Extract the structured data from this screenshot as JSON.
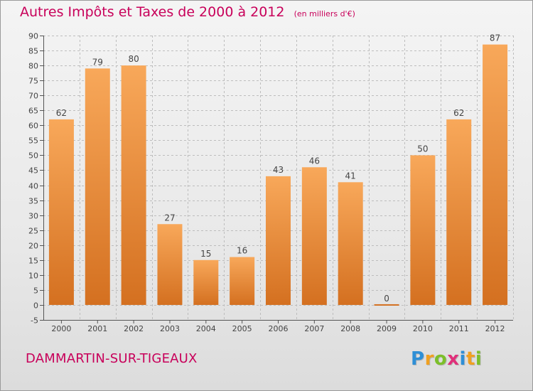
{
  "header": {
    "title": "Autres Impôts et Taxes de 2000 à 2012",
    "subtitle": "(en milliers d'€)"
  },
  "footer": {
    "commune": "DAMMARTIN-SUR-TIGEAUX",
    "brand": "Proxiti",
    "brand_letters": [
      {
        "char": "P",
        "color": "#2e8fd6"
      },
      {
        "char": "r",
        "color": "#f0a020"
      },
      {
        "char": "o",
        "color": "#7cbf2a"
      },
      {
        "char": "x",
        "color": "#e0307a"
      },
      {
        "char": "i",
        "color": "#2e8fd6"
      },
      {
        "char": "t",
        "color": "#f0a020"
      },
      {
        "char": "i",
        "color": "#7cbf2a"
      }
    ]
  },
  "colors": {
    "bar_top": "#f8a85a",
    "bar_bottom": "#d47020",
    "grid": "#bdbdbd",
    "axis": "#555555",
    "title": "#c8005a"
  },
  "chart_data": {
    "type": "bar",
    "title": "Autres Impôts et Taxes de 2000 à 2012",
    "subtitle": "(en milliers d'€)",
    "xlabel": "",
    "ylabel": "",
    "categories": [
      "2000",
      "2001",
      "2002",
      "2003",
      "2004",
      "2005",
      "2006",
      "2007",
      "2008",
      "2009",
      "2010",
      "2011",
      "2012"
    ],
    "values": [
      62,
      79,
      80,
      27,
      15,
      16,
      43,
      46,
      41,
      0,
      50,
      62,
      87
    ],
    "ylim": [
      -5,
      90
    ],
    "yticks": [
      -5,
      0,
      5,
      10,
      15,
      20,
      25,
      30,
      35,
      40,
      45,
      50,
      55,
      60,
      65,
      70,
      75,
      80,
      85,
      90
    ],
    "grid": true,
    "legend": "none"
  }
}
